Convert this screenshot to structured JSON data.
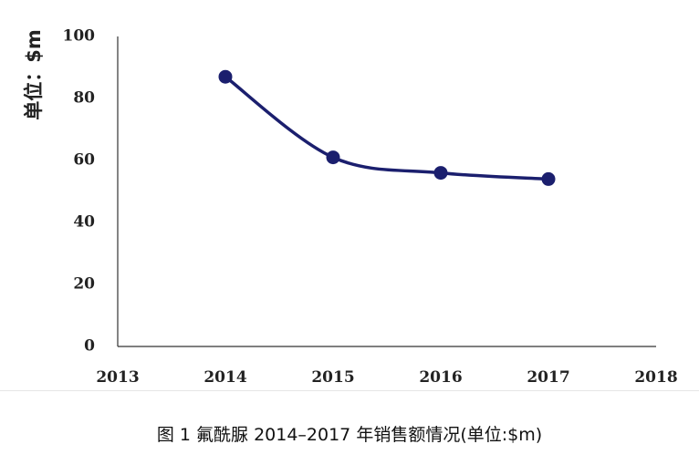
{
  "chart_data": {
    "type": "line",
    "x": [
      2014,
      2015,
      2016,
      2017
    ],
    "series": [
      {
        "values": [
          87,
          61,
          56,
          54
        ],
        "color": "#1b1f6e"
      }
    ],
    "xticks": [
      "2013",
      "2014",
      "2015",
      "2016",
      "2017",
      "2018"
    ],
    "yticks": [
      "0",
      "20",
      "40",
      "60",
      "80",
      "100"
    ],
    "xlim": [
      2013,
      2018
    ],
    "ylim": [
      0,
      100
    ],
    "ylabel": "单位：$m",
    "xlabel": "",
    "grid": false,
    "legend": "none"
  },
  "caption": "图 1  氟酰脲 2014–2017 年销售额情况(单位:$m)"
}
